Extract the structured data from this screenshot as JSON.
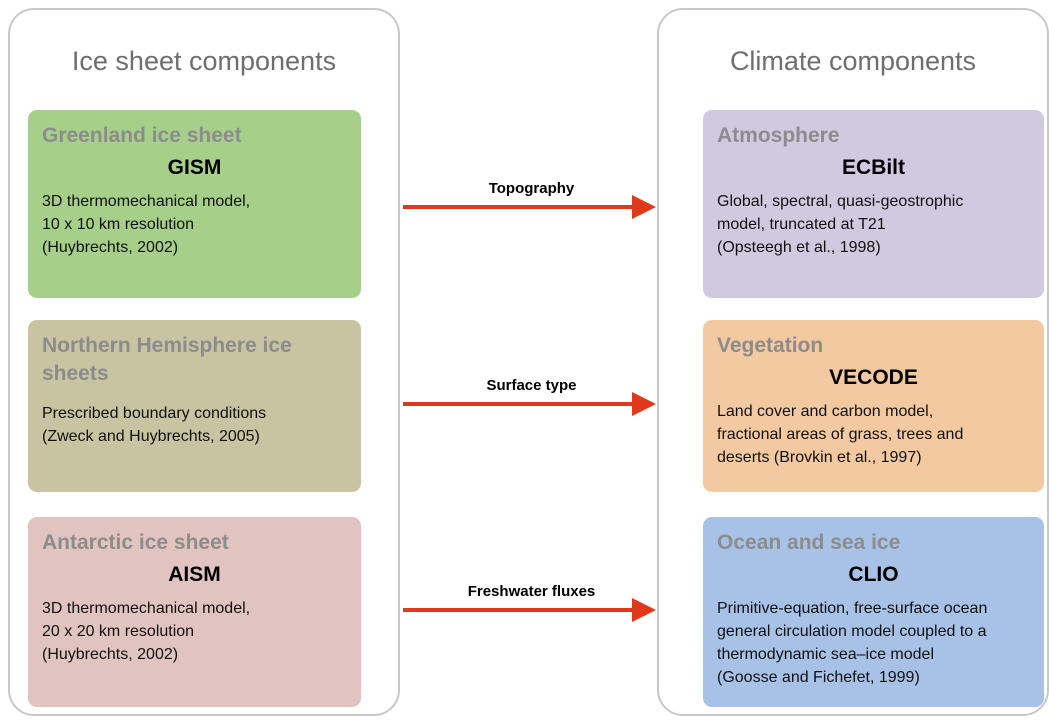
{
  "panels": [
    {
      "title": "Ice sheet components",
      "boxes": [
        {
          "heading": "Greenland ice sheet",
          "model": "GISM",
          "lines": [
            "3D thermomechanical model,",
            "10 x 10 km resolution",
            "(Huybrechts, 2002)"
          ]
        },
        {
          "heading": "Northern Hemisphere ice sheets",
          "lines": [
            "Prescribed boundary conditions",
            "(Zweck and Huybrechts, 2005)"
          ]
        },
        {
          "heading": "Antarctic ice sheet",
          "model": "AISM",
          "lines": [
            "3D thermomechanical model,",
            "20 x 20 km resolution",
            "(Huybrechts, 2002)"
          ]
        }
      ]
    },
    {
      "title": "Climate components",
      "boxes": [
        {
          "heading": "Atmosphere",
          "model": "ECBilt",
          "lines": [
            "Global, spectral, quasi-geostrophic",
            "model, truncated at T21",
            "(Opsteegh et al., 1998)"
          ]
        },
        {
          "heading": "Vegetation",
          "model": "VECODE",
          "lines": [
            "Land cover and carbon model,",
            "fractional areas of grass, trees and",
            "deserts (Brovkin et al., 1997)"
          ]
        },
        {
          "heading": "Ocean and sea ice",
          "model": "CLIO",
          "lines": [
            "Primitive-equation, free-surface ocean",
            "general circulation model coupled to a",
            "thermodynamic sea–ice model",
            "(Goosse and Fichefet, 1999)"
          ]
        }
      ]
    }
  ],
  "arrows": [
    {
      "label": "Topography"
    },
    {
      "label": "Surface type"
    },
    {
      "label": "Freshwater fluxes"
    }
  ]
}
